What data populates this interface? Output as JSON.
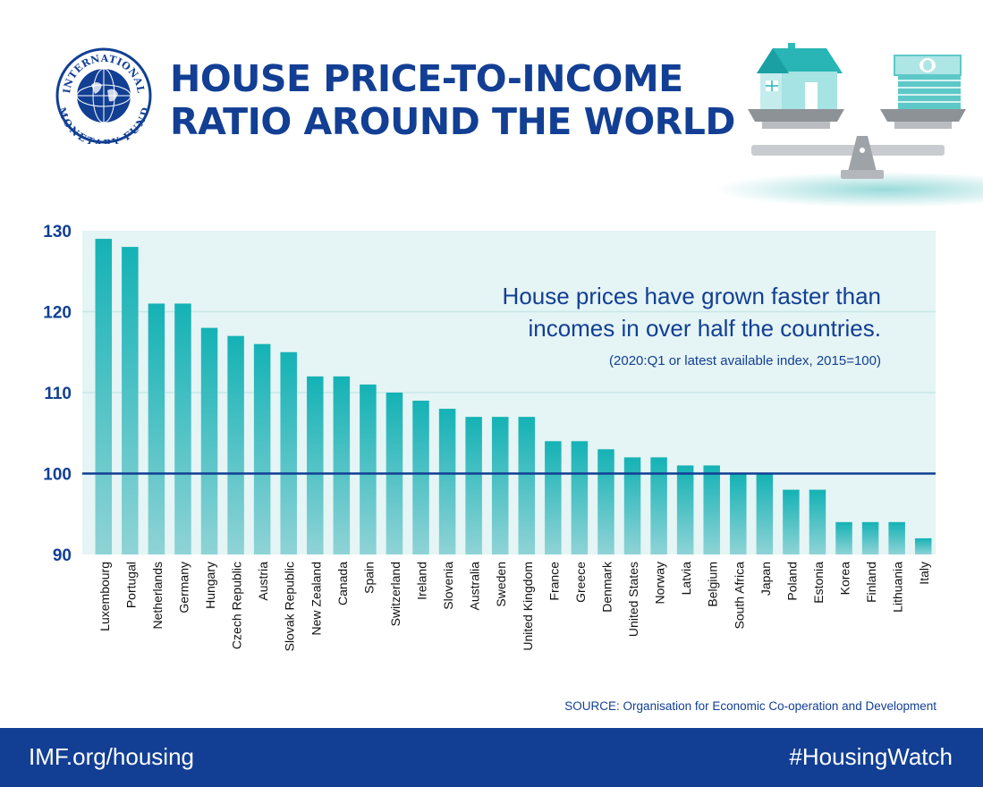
{
  "header": {
    "logo_text_top": "INTERNATIONAL",
    "logo_text_bottom": "MONETARY FUND",
    "title_line1": "HOUSE PRICE-TO-INCOME",
    "title_line2": "RATIO AROUND THE WORLD"
  },
  "chart_data": {
    "type": "bar",
    "annotation_line1": "House prices have grown faster than",
    "annotation_line2": "incomes in over half the countries.",
    "annotation_note": "(2020:Q1 or latest available index, 2015=100)",
    "ylim": [
      90,
      130
    ],
    "yticks": [
      90,
      100,
      110,
      120,
      130
    ],
    "reference_line": 100,
    "grid": true,
    "categories": [
      "Luxembourg",
      "Portugal",
      "Netherlands",
      "Germany",
      "Hungary",
      "Czech Republic",
      "Austria",
      "Slovak Republic",
      "New Zealand",
      "Canada",
      "Spain",
      "Switzerland",
      "Ireland",
      "Slovenia",
      "Australia",
      "Sweden",
      "United Kingdom",
      "France",
      "Greece",
      "Denmark",
      "United States",
      "Norway",
      "Latvia",
      "Belgium",
      "South Africa",
      "Japan",
      "Poland",
      "Estonia",
      "Korea",
      "Finland",
      "Lithuania",
      "Italy"
    ],
    "values": [
      129,
      128,
      121,
      121,
      118,
      117,
      116,
      115,
      112,
      112,
      111,
      110,
      109,
      108,
      107,
      107,
      107,
      104,
      104,
      103,
      102,
      102,
      101,
      101,
      100,
      100,
      98,
      98,
      94,
      94,
      94,
      92
    ]
  },
  "source": "SOURCE: Organisation for Economic Co-operation and Development",
  "footer": {
    "left": "IMF.org/housing",
    "right": "#HousingWatch"
  },
  "colors": {
    "brand_blue": "#123f94",
    "bar_top": "#14b2b5",
    "bar_bottom": "#8fd3d6",
    "plot_background": "#e5f4f4"
  }
}
